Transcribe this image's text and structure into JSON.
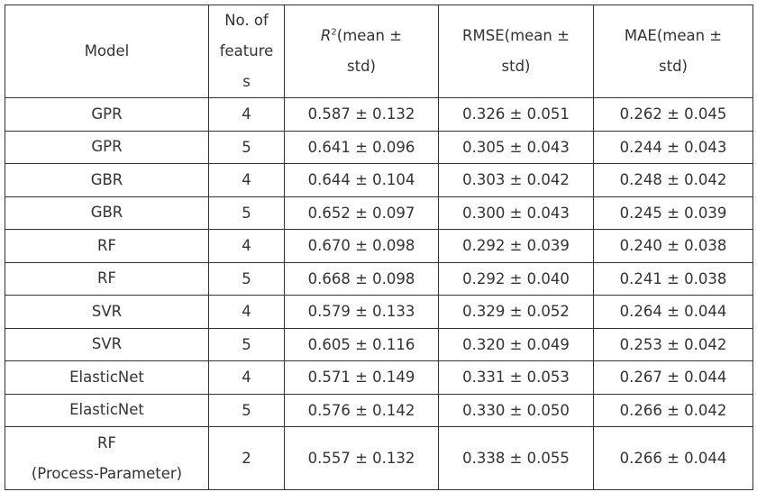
{
  "table": {
    "header": [
      {
        "lines": [
          "Model"
        ]
      },
      {
        "lines": [
          "No. of",
          "feature",
          "s"
        ]
      },
      {
        "symbol": "R",
        "sup": "2",
        "lines": [
          "(mean ±",
          "std)"
        ]
      },
      {
        "lines": [
          "RMSE(mean ±",
          "std)"
        ]
      },
      {
        "lines": [
          "MAE(mean ±",
          "std)"
        ]
      }
    ],
    "rows": [
      [
        [
          "GPR"
        ],
        "4",
        "0.587 ± 0.132",
        "0.326 ± 0.051",
        "0.262 ± 0.045"
      ],
      [
        [
          "GPR"
        ],
        "5",
        "0.641 ± 0.096",
        "0.305 ± 0.043",
        "0.244 ± 0.043"
      ],
      [
        [
          "GBR"
        ],
        "4",
        "0.644 ± 0.104",
        "0.303 ± 0.042",
        "0.248 ± 0.042"
      ],
      [
        [
          "GBR"
        ],
        "5",
        "0.652 ± 0.097",
        "0.300 ± 0.043",
        "0.245 ± 0.039"
      ],
      [
        [
          "RF"
        ],
        "4",
        "0.670 ± 0.098",
        "0.292 ± 0.039",
        "0.240 ± 0.038"
      ],
      [
        [
          "RF"
        ],
        "5",
        "0.668 ± 0.098",
        "0.292 ± 0.040",
        "0.241 ± 0.038"
      ],
      [
        [
          "SVR"
        ],
        "4",
        "0.579 ± 0.133",
        "0.329 ± 0.052",
        "0.264 ± 0.044"
      ],
      [
        [
          "SVR"
        ],
        "5",
        "0.605 ± 0.116",
        "0.320 ± 0.049",
        "0.253 ± 0.042"
      ],
      [
        [
          "ElasticNet"
        ],
        "4",
        "0.571 ± 0.149",
        "0.331 ± 0.053",
        "0.267 ± 0.044"
      ],
      [
        [
          "ElasticNet"
        ],
        "5",
        "0.576 ± 0.142",
        "0.330 ± 0.050",
        "0.266 ± 0.042"
      ],
      [
        [
          "RF",
          "(Process-Parameter)"
        ],
        "2",
        "0.557 ± 0.132",
        "0.338 ± 0.055",
        "0.266 ± 0.044"
      ]
    ]
  }
}
